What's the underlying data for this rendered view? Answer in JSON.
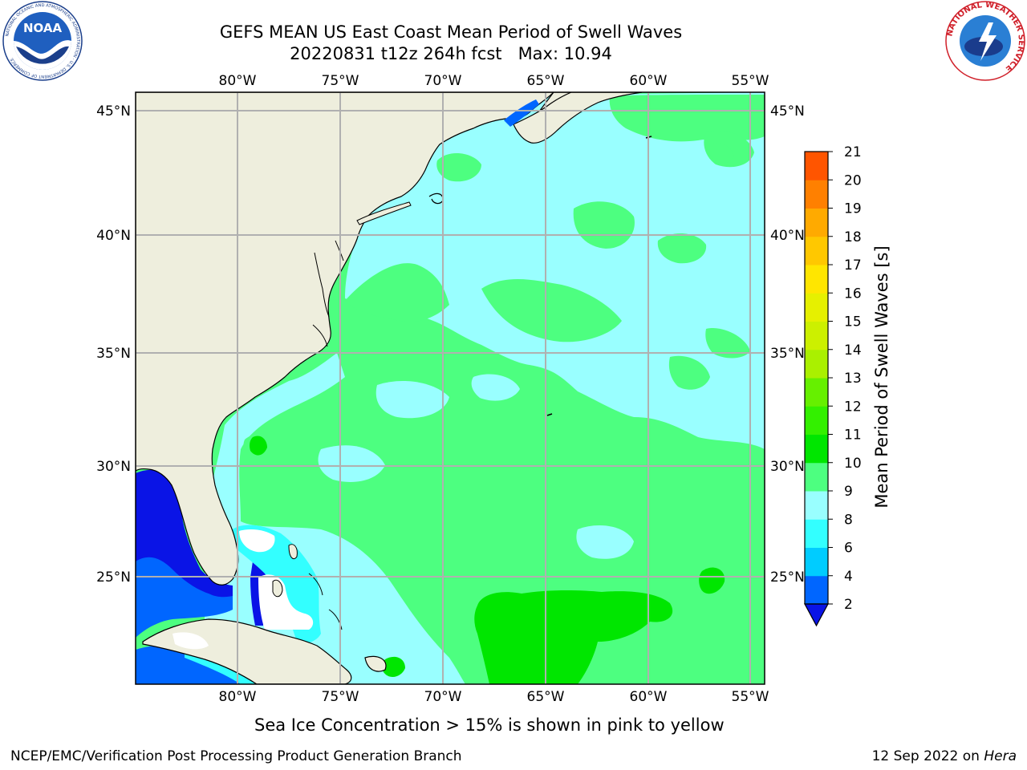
{
  "header": {
    "title_line1": "GEFS MEAN US East Coast Mean Period of Swell Waves",
    "title_line2": "20220831 t12z 264h fcst   Max: 10.94"
  },
  "logos": {
    "left": "NOAA",
    "left_ring_text": "NATIONAL OCEANIC AND ATMOSPHERIC ADMINISTRATION · U.S. DEPARTMENT OF COMMERCE",
    "right_ring_text": "NATIONAL WEATHER SERVICE"
  },
  "map": {
    "lon_labels": [
      "80°W",
      "75°W",
      "70°W",
      "65°W",
      "60°W",
      "55°W"
    ],
    "lat_labels": [
      "45°N",
      "40°N",
      "35°N",
      "30°N",
      "25°N"
    ],
    "colors": {
      "land": "#eeeedd",
      "masked": "#ffffff",
      "gridline": "#b0b0b0",
      "coast": "#000000"
    }
  },
  "colorbar": {
    "title": "Mean Period of Swell Waves [s]",
    "ticks": [
      "2",
      "4",
      "6",
      "8",
      "9",
      "10",
      "11",
      "12",
      "13",
      "14",
      "15",
      "16",
      "17",
      "18",
      "19",
      "20",
      "21"
    ],
    "colors": [
      "#0066ff",
      "#00ccff",
      "#33ffff",
      "#99ffff",
      "#4dff80",
      "#00e600",
      "#33f000",
      "#66f000",
      "#aaf000",
      "#ccf000",
      "#e6f000",
      "#ffe600",
      "#ffc800",
      "#ffaa00",
      "#ff8000",
      "#ff5500",
      "#ff2200",
      "#ff0000"
    ],
    "under_color": "#0a14e6"
  },
  "note": "Sea Ice Concentration > 15% is shown in pink to yellow",
  "footer": {
    "left": "NCEP/EMC/Verification Post Processing Product Generation Branch",
    "right_date": "12 Sep 2022 on ",
    "right_machine": "Hera"
  }
}
